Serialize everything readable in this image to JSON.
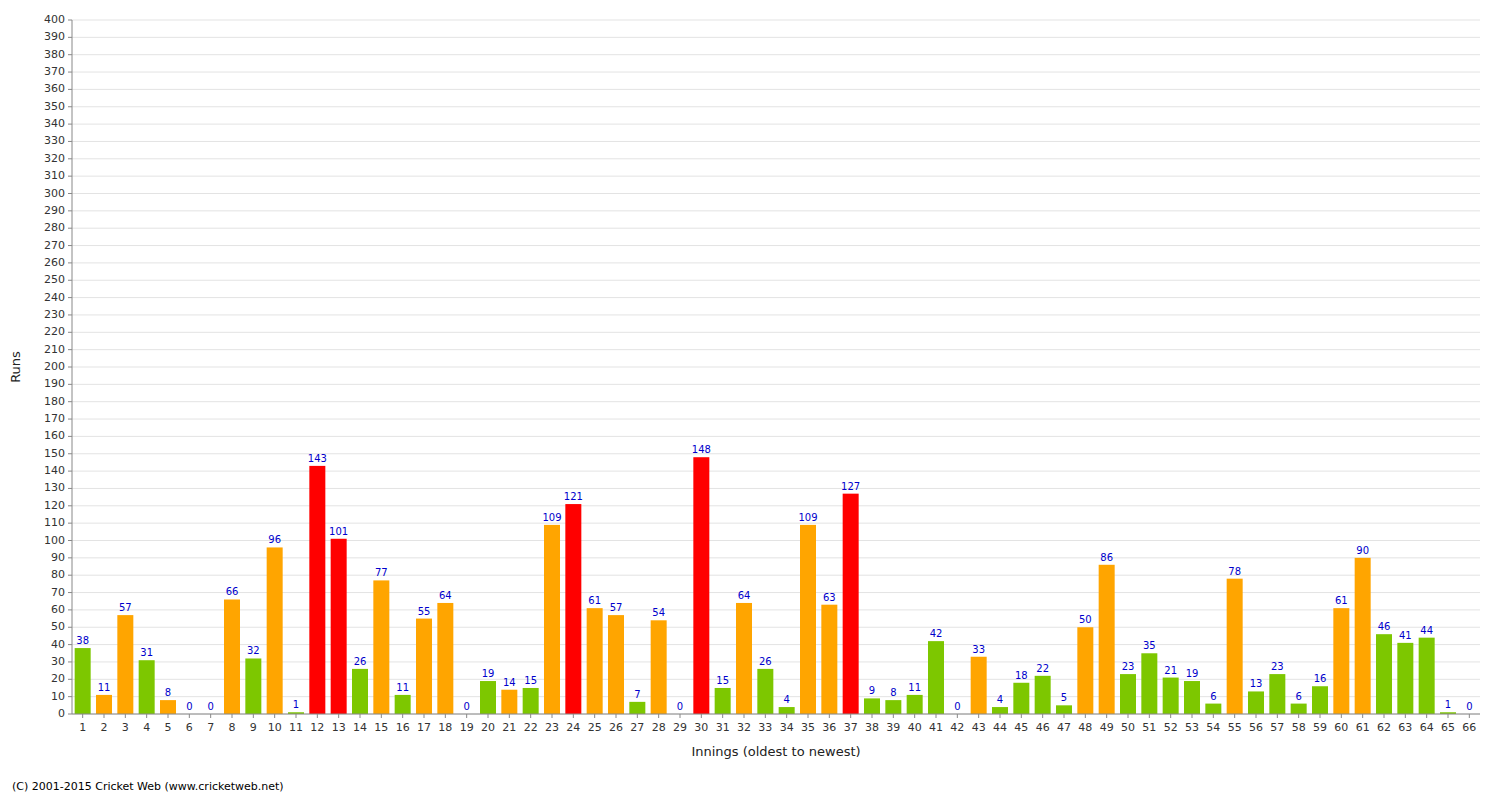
{
  "chart_data": {
    "type": "bar",
    "xlabel": "Innings (oldest to newest)",
    "ylabel": "Runs",
    "categories": [
      "1",
      "2",
      "3",
      "4",
      "5",
      "6",
      "7",
      "8",
      "9",
      "10",
      "11",
      "12",
      "13",
      "14",
      "15",
      "16",
      "17",
      "18",
      "19",
      "20",
      "21",
      "22",
      "23",
      "24",
      "25",
      "26",
      "27",
      "28",
      "29",
      "30",
      "31",
      "32",
      "33",
      "34",
      "35",
      "36",
      "37",
      "38",
      "39",
      "40",
      "41",
      "42",
      "43",
      "44",
      "45",
      "46",
      "47",
      "48",
      "49",
      "50",
      "51",
      "52",
      "53",
      "54",
      "55",
      "56",
      "57",
      "58",
      "59",
      "60",
      "61",
      "62",
      "63",
      "64",
      "65",
      "66"
    ],
    "values": [
      38,
      11,
      57,
      31,
      8,
      0,
      0,
      66,
      32,
      96,
      1,
      143,
      101,
      26,
      77,
      11,
      55,
      64,
      0,
      19,
      14,
      15,
      109,
      121,
      61,
      57,
      7,
      54,
      0,
      148,
      15,
      64,
      26,
      4,
      109,
      63,
      127,
      9,
      8,
      11,
      42,
      0,
      33,
      4,
      18,
      22,
      5,
      50,
      86,
      23,
      35,
      21,
      19,
      6,
      78,
      13,
      23,
      6,
      16,
      61,
      90,
      46,
      41,
      44,
      1,
      0
    ],
    "colors": [
      "#7dc700",
      "#ffa500",
      "#ffa500",
      "#7dc700",
      "#ffa500",
      "#7dc700",
      "#7dc700",
      "#ffa500",
      "#7dc700",
      "#ffa500",
      "#7dc700",
      "#ff0000",
      "#ff0000",
      "#7dc700",
      "#ffa500",
      "#7dc700",
      "#ffa500",
      "#ffa500",
      "#7dc700",
      "#7dc700",
      "#ffa500",
      "#7dc700",
      "#ffa500",
      "#ff0000",
      "#ffa500",
      "#ffa500",
      "#7dc700",
      "#ffa500",
      "#7dc700",
      "#ff0000",
      "#7dc700",
      "#ffa500",
      "#7dc700",
      "#7dc700",
      "#ffa500",
      "#ffa500",
      "#ff0000",
      "#7dc700",
      "#7dc700",
      "#7dc700",
      "#7dc700",
      "#7dc700",
      "#ffa500",
      "#7dc700",
      "#7dc700",
      "#7dc700",
      "#7dc700",
      "#ffa500",
      "#ffa500",
      "#7dc700",
      "#7dc700",
      "#7dc700",
      "#7dc700",
      "#7dc700",
      "#ffa500",
      "#7dc700",
      "#7dc700",
      "#7dc700",
      "#7dc700",
      "#ffa500",
      "#ffa500",
      "#7dc700",
      "#7dc700",
      "#7dc700",
      "#7dc700",
      "#7dc700"
    ],
    "ylim": [
      0,
      400
    ],
    "yticks": [
      0,
      10,
      20,
      30,
      40,
      50,
      60,
      70,
      80,
      90,
      100,
      110,
      120,
      130,
      140,
      150,
      160,
      170,
      180,
      190,
      200,
      210,
      220,
      230,
      240,
      250,
      260,
      270,
      280,
      290,
      300,
      310,
      320,
      330,
      340,
      350,
      360,
      370,
      380,
      390,
      400
    ],
    "grid": true,
    "data_labels": true,
    "annotations": [
      "(C) 2001-2015 Cricket Web (www.cricketweb.net)"
    ]
  }
}
